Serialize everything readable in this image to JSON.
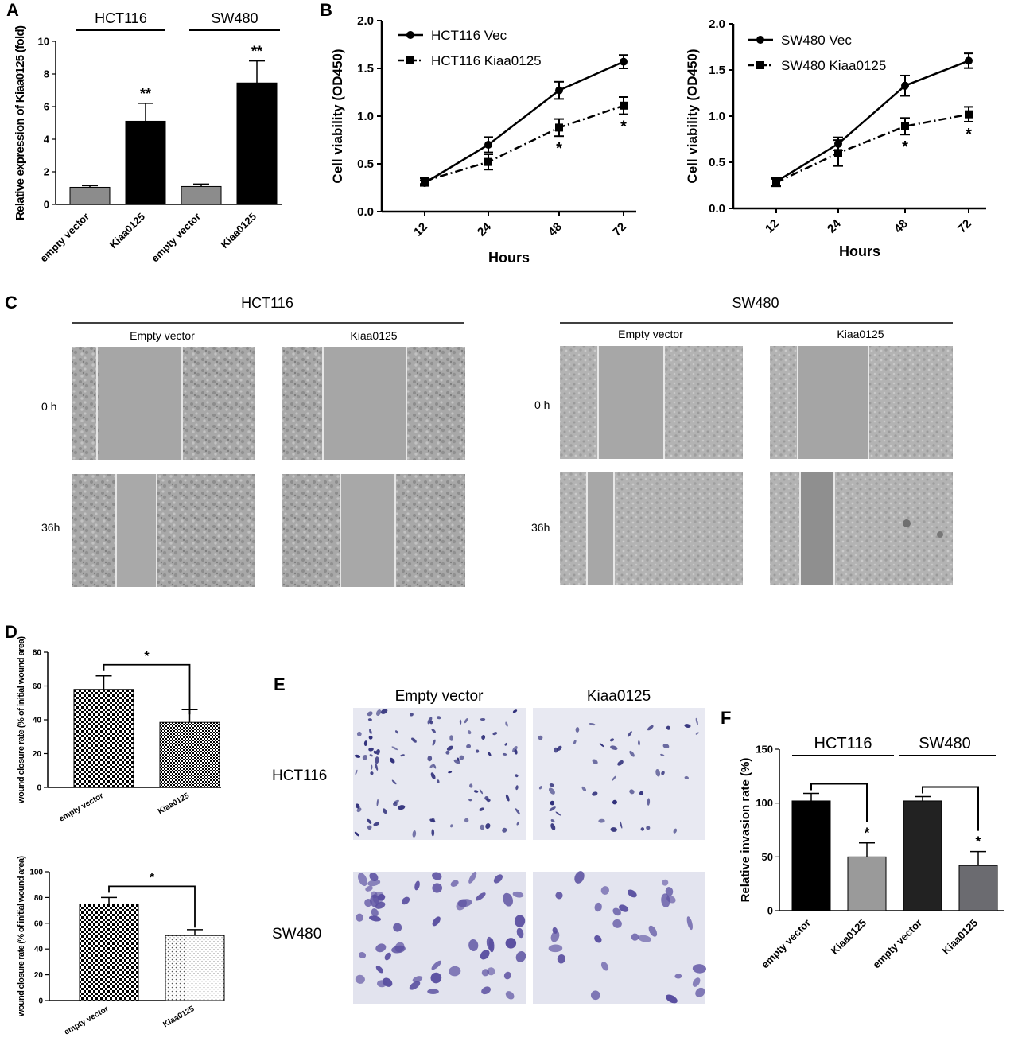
{
  "panels": {
    "A": {
      "letter": "A",
      "groups": [
        "HCT116",
        "SW480"
      ]
    },
    "B": {
      "letter": "B"
    },
    "C": {
      "letter": "C",
      "groups": [
        "HCT116",
        "SW480"
      ],
      "conditions": [
        "Empty vector",
        "Kiaa0125"
      ],
      "times": [
        "0 h",
        "36h"
      ]
    },
    "D": {
      "letter": "D"
    },
    "E": {
      "letter": "E",
      "columns": [
        "Empty vector",
        "Kiaa0125"
      ],
      "rows": [
        "HCT116",
        "SW480"
      ]
    },
    "F": {
      "letter": "F",
      "groups": [
        "HCT116",
        "SW480"
      ]
    }
  },
  "colors": {
    "light_gray": "#8a8a8a",
    "black": "#000000",
    "stain": "#3a3a8c",
    "micro_bg": "#b9b9b9"
  },
  "chart_data": [
    {
      "id": "A",
      "type": "bar",
      "categories": [
        "empty vector",
        "Kiaa0125",
        "empty vector",
        "Kiaa0125"
      ],
      "values": [
        1.05,
        5.1,
        1.1,
        7.45
      ],
      "errors": [
        0.1,
        1.1,
        0.15,
        1.35
      ],
      "significance": [
        "",
        "**",
        "",
        "**"
      ],
      "bar_colors": [
        "#8c8c8c",
        "#000000",
        "#8c8c8c",
        "#000000"
      ],
      "ylabel": "Relative expression of Kiaa0125 (fold)",
      "ylim": [
        0,
        10
      ],
      "yticks": [
        "0",
        "2",
        "4",
        "6",
        "8",
        "10"
      ]
    },
    {
      "id": "B1",
      "type": "line",
      "x": [
        "12",
        "24",
        "48",
        "72"
      ],
      "series": [
        {
          "name": "HCT116 Vec",
          "values": [
            0.3,
            0.7,
            1.27,
            1.57
          ],
          "errors": [
            0.03,
            0.08,
            0.09,
            0.07
          ]
        },
        {
          "name": "HCT116 Kiaa0125",
          "values": [
            0.32,
            0.52,
            0.88,
            1.11
          ],
          "errors": [
            0.03,
            0.08,
            0.09,
            0.09
          ]
        }
      ],
      "significance": [
        "",
        "",
        "*",
        "*"
      ],
      "xlabel": "Hours",
      "ylabel": "Cell viability (OD450)",
      "ylim": [
        0,
        2.0
      ],
      "yticks": [
        "0.0",
        "0.5",
        "1.0",
        "1.5",
        "2.0"
      ],
      "legend": "top-left"
    },
    {
      "id": "B2",
      "type": "line",
      "x": [
        "12",
        "24",
        "48",
        "72"
      ],
      "series": [
        {
          "name": "SW480 Vec",
          "values": [
            0.29,
            0.7,
            1.33,
            1.6
          ],
          "errors": [
            0.04,
            0.07,
            0.11,
            0.08
          ]
        },
        {
          "name": "SW480 Kiaa0125",
          "values": [
            0.28,
            0.6,
            0.89,
            1.02
          ],
          "errors": [
            0.04,
            0.14,
            0.09,
            0.08
          ]
        }
      ],
      "significance": [
        "",
        "",
        "*",
        "*"
      ],
      "xlabel": "Hours",
      "ylabel": "Cell viability (OD450)",
      "ylim": [
        0,
        2.0
      ],
      "yticks": [
        "0.0",
        "0.5",
        "1.0",
        "1.5",
        "2.0"
      ],
      "legend": "top-left"
    },
    {
      "id": "D1",
      "type": "bar",
      "categories": [
        "empty vector",
        "Kiaa0125"
      ],
      "values": [
        58,
        38.5
      ],
      "errors": [
        8,
        7.5
      ],
      "significance": "*",
      "ylabel": "wound closure rate (% of initial wound area)",
      "ylim": [
        0,
        80
      ],
      "yticks": [
        "0",
        "20",
        "40",
        "60",
        "80"
      ]
    },
    {
      "id": "D2",
      "type": "bar",
      "categories": [
        "empty vector",
        "Kiaa0125"
      ],
      "values": [
        75,
        50.5
      ],
      "errors": [
        5,
        4.5
      ],
      "significance": "*",
      "ylabel": "wound closure rate (% of initial wound area)",
      "ylim": [
        0,
        100
      ],
      "yticks": [
        "0",
        "20",
        "40",
        "60",
        "80",
        "100"
      ]
    },
    {
      "id": "F",
      "type": "bar",
      "categories": [
        "empty vector",
        "Kiaa0125",
        "empty vector",
        "Kiaa0125"
      ],
      "values": [
        102,
        50,
        102,
        42
      ],
      "errors": [
        7,
        13,
        4,
        13
      ],
      "significance": [
        "",
        "*",
        "",
        "*"
      ],
      "bar_colors": [
        "#000000",
        "#9a9a9a",
        "#222222",
        "#6b6b70"
      ],
      "ylabel": "Relative invasion rate (%)",
      "ylim": [
        0,
        150
      ],
      "yticks": [
        "0",
        "50",
        "100",
        "150"
      ]
    }
  ]
}
